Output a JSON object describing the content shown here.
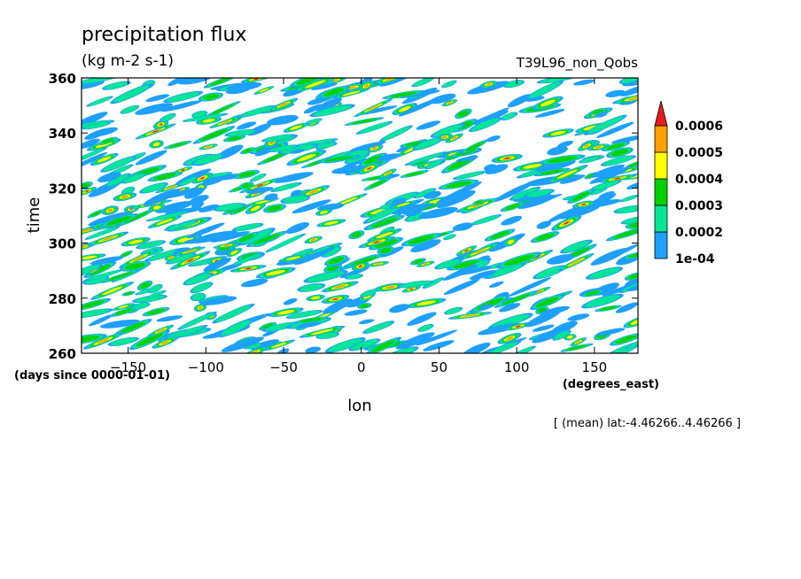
{
  "chart_data": {
    "type": "heatmap",
    "title": "precipitation flux",
    "units": "(kg m-2 s-1)",
    "run_label": "T39L96_non_Qobs",
    "xlabel": "lon",
    "x_units": "(degrees_east)",
    "ylabel": "time",
    "y_units": "(days since 0000-01-01)",
    "xlim": [
      -180,
      178
    ],
    "ylim": [
      260,
      360
    ],
    "x_ticks": [
      -150,
      -100,
      -50,
      0,
      50,
      100,
      150
    ],
    "y_ticks": [
      260,
      280,
      300,
      320,
      340,
      360
    ],
    "footnote": "[ (mean) lat:-4.46266..4.46266 ]",
    "colorbar": {
      "levels": [
        "1e-04",
        "0.0002",
        "0.0003",
        "0.0004",
        "0.0005",
        "0.0006"
      ],
      "colors": [
        "#1ea0ff",
        "#00e696",
        "#00d200",
        "#ffff00",
        "#ffa000",
        "#e61e1e"
      ]
    }
  }
}
